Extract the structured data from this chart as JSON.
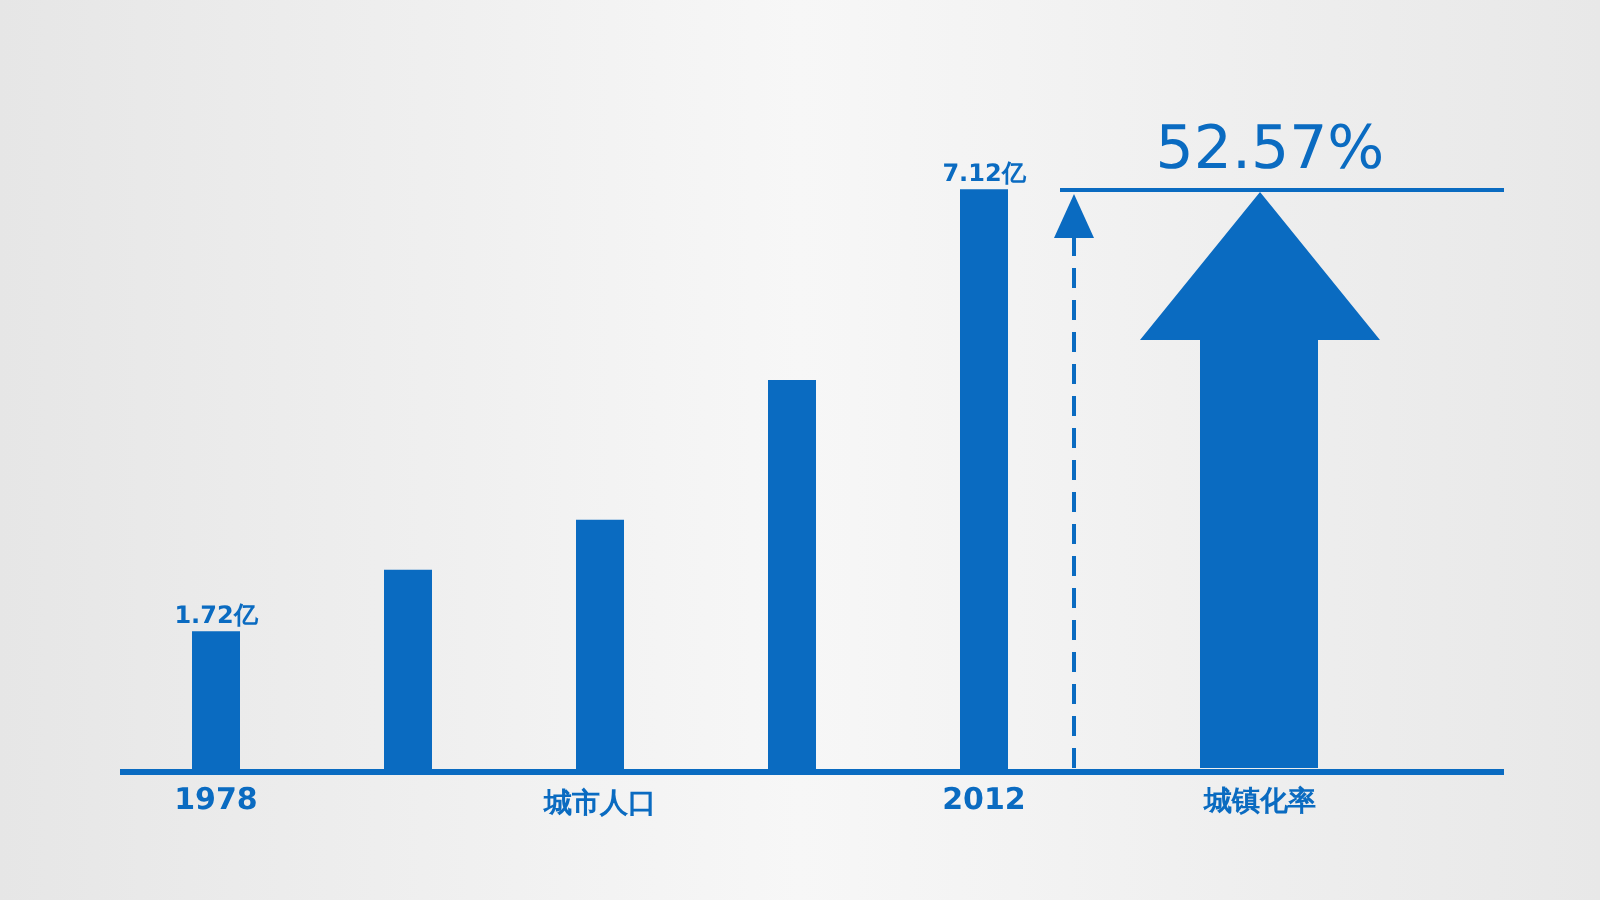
{
  "chart_data": {
    "type": "bar",
    "categories": [
      "1978",
      null,
      null,
      null,
      "2012"
    ],
    "xlabel": "城市人口",
    "values": [
      1.72,
      2.47,
      3.08,
      4.79,
      7.12
    ],
    "value_labels": [
      "1.72亿",
      null,
      null,
      null,
      "7.12亿"
    ],
    "color": "#0a6bc1",
    "annotations": [
      "52.57%",
      "城镇化率"
    ]
  }
}
